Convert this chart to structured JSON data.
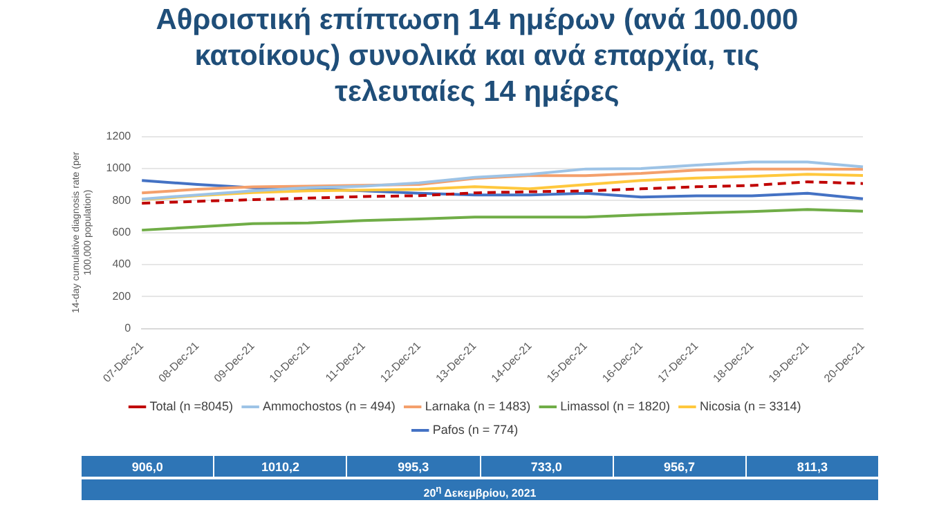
{
  "chart_data": {
    "type": "line",
    "title": "Αθροιστική επίπτωση 14 ημέρων (ανά 100.000 κατοίκους) συνολικά και ανά επαρχία, τις τελευταίες 14 ημέρες",
    "ylabel": "14-day cumulative diagnosis rate (per 100,000 population)",
    "categories": [
      "07-Dec-21",
      "08-Dec-21",
      "09-Dec-21",
      "10-Dec-21",
      "11-Dec-21",
      "12-Dec-21",
      "13-Dec-21",
      "14-Dec-21",
      "15-Dec-21",
      "16-Dec-21",
      "17-Dec-21",
      "18-Dec-21",
      "19-Dec-21",
      "20-Dec-21"
    ],
    "series": [
      {
        "name": "Total (n =8045)",
        "color": "#c00000",
        "line_style": "dashed",
        "values": [
          783,
          795,
          805,
          815,
          825,
          830,
          848,
          855,
          860,
          873,
          886,
          894,
          917,
          906
        ]
      },
      {
        "name": "Ammochostos (n = 494)",
        "color": "#9dc3e6",
        "values": [
          809,
          835,
          860,
          880,
          890,
          910,
          945,
          964,
          997,
          1000,
          1021,
          1041,
          1041,
          1010
        ]
      },
      {
        "name": "Larnaka (n = 1483)",
        "color": "#f4a06c",
        "values": [
          848,
          870,
          885,
          890,
          895,
          900,
          938,
          956,
          956,
          969,
          990,
          997,
          997,
          995
        ]
      },
      {
        "name": "Limassol (n = 1820)",
        "color": "#70ad47",
        "values": [
          615,
          635,
          655,
          660,
          675,
          685,
          697,
          697,
          697,
          710,
          721,
          731,
          744,
          733
        ]
      },
      {
        "name": "Nicosia (n = 3314)",
        "color": "#ffc83d",
        "values": [
          805,
          830,
          850,
          860,
          865,
          870,
          886,
          873,
          899,
          925,
          940,
          951,
          964,
          957
        ]
      },
      {
        "name": "Pafos (n = 774)",
        "color": "#4472c4",
        "values": [
          925,
          900,
          880,
          875,
          860,
          845,
          835,
          835,
          845,
          822,
          829,
          829,
          845,
          811
        ]
      }
    ],
    "ylim": [
      0,
      1200
    ],
    "yticks": [
      0,
      200,
      400,
      600,
      800,
      1000,
      1200
    ],
    "grid": "y",
    "legend": "bottom",
    "marker": "none",
    "annotations": [
      "906,0",
      "1010,2",
      "995,3",
      "733,0",
      "956,7",
      "811,3",
      "20$^{η}$ Δεκεμβρίου, 2021"
    ]
  }
}
